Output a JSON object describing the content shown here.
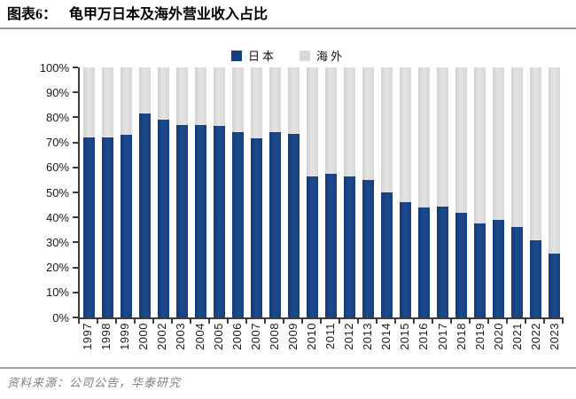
{
  "figure": {
    "label": "图表6：",
    "title": "龟甲万日本及海外营业收入占比"
  },
  "legend": {
    "japan": {
      "label": "日本",
      "color": "#16407f"
    },
    "overseas": {
      "label": "海外",
      "color": "#d9d9d9"
    }
  },
  "chart_data": {
    "type": "bar",
    "stacked": true,
    "unit": "%",
    "title": "龟甲万日本及海外营业收入占比",
    "categories": [
      "1997",
      "1998",
      "1999",
      "2000",
      "2002",
      "2003",
      "2004",
      "2005",
      "2006",
      "2007",
      "2008",
      "2009",
      "2010",
      "2011",
      "2012",
      "2013",
      "2014",
      "2015",
      "2016",
      "2017",
      "2018",
      "2019",
      "2020",
      "2021",
      "2022",
      "2023"
    ],
    "series": [
      {
        "name": "日本",
        "color": "#16407f",
        "values": [
          72,
          72,
          73,
          81.5,
          79,
          77,
          77,
          76.5,
          74,
          71.5,
          74,
          73.5,
          56.5,
          57.5,
          56.5,
          55,
          50,
          46,
          44,
          44.5,
          42,
          37.5,
          39,
          36,
          31,
          25.5
        ]
      },
      {
        "name": "海外",
        "color": "#d9d9d9",
        "values": [
          28,
          28,
          27,
          18.5,
          21,
          23,
          23,
          23.5,
          26,
          28.5,
          26,
          26.5,
          43.5,
          42.5,
          43.5,
          45,
          50,
          54,
          56,
          55.5,
          58,
          62.5,
          61,
          64,
          69,
          74.5
        ]
      }
    ],
    "ylim": [
      0,
      100
    ],
    "y_ticks": [
      "100%",
      "90%",
      "80%",
      "70%",
      "60%",
      "50%",
      "40%",
      "30%",
      "20%",
      "10%",
      "0%"
    ],
    "grid": false,
    "legend_position": "top-center"
  },
  "source": {
    "text": "资料来源：公司公告，华泰研究"
  }
}
